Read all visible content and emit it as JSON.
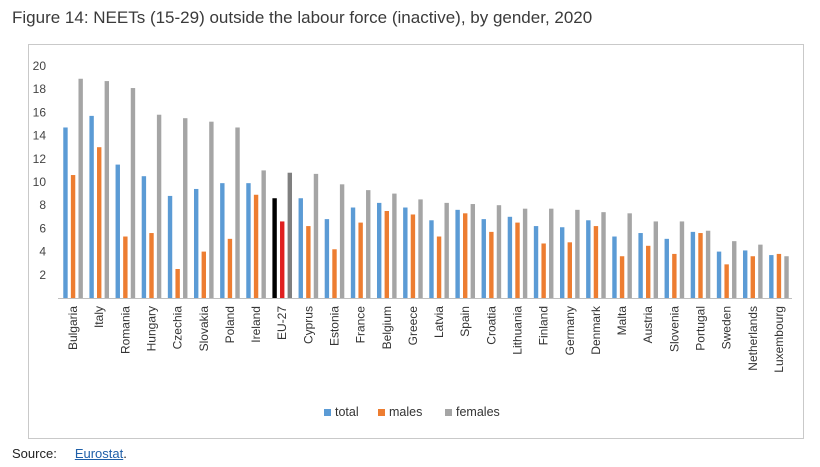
{
  "title": "Figure 14: NEETs (15-29) outside the labour force (inactive), by gender, 2020",
  "source": {
    "label": "Source:",
    "link_text": "Eurostat",
    "suffix": "."
  },
  "chart_data": {
    "type": "bar",
    "categories": [
      "Bulgaria",
      "Italy",
      "Romania",
      "Hungary",
      "Czechia",
      "Slovakia",
      "Poland",
      "Ireland",
      "EU-27",
      "Cyprus",
      "Estonia",
      "France",
      "Belgium",
      "Greece",
      "Latvia",
      "Spain",
      "Croatia",
      "Lithuania",
      "Finland",
      "Germany",
      "Denmark",
      "Malta",
      "Austria",
      "Slovenia",
      "Portugal",
      "Sweden",
      "Netherlands",
      "Luxembourg"
    ],
    "series": [
      {
        "name": "total",
        "color": "#5b9bd5",
        "highlight_color": "#000000",
        "values": [
          14.7,
          15.7,
          11.5,
          10.5,
          8.8,
          9.4,
          9.9,
          9.9,
          8.6,
          8.6,
          6.8,
          7.8,
          8.2,
          7.8,
          6.7,
          7.6,
          6.8,
          7.0,
          6.2,
          6.1,
          6.7,
          5.3,
          5.6,
          5.1,
          5.7,
          4.0,
          4.1,
          3.7
        ]
      },
      {
        "name": "males",
        "color": "#ed7d31",
        "highlight_color": "#e02020",
        "values": [
          10.6,
          13.0,
          5.3,
          5.6,
          2.5,
          4.0,
          5.1,
          8.9,
          6.6,
          6.2,
          4.2,
          6.5,
          7.5,
          7.2,
          5.3,
          7.3,
          5.7,
          6.5,
          4.7,
          4.8,
          6.2,
          3.6,
          4.5,
          3.8,
          5.6,
          2.9,
          3.6,
          3.8
        ]
      },
      {
        "name": "females",
        "color": "#a5a5a5",
        "highlight_color": "#7f7f7f",
        "values": [
          18.9,
          18.7,
          18.1,
          15.8,
          15.5,
          15.2,
          14.7,
          11.0,
          10.8,
          10.7,
          9.8,
          9.3,
          9.0,
          8.5,
          8.2,
          8.1,
          8.0,
          7.7,
          7.7,
          7.6,
          7.4,
          7.3,
          6.6,
          6.6,
          5.8,
          4.9,
          4.6,
          3.6
        ]
      }
    ],
    "highlight_category": "EU-27",
    "ylim": [
      0,
      20
    ],
    "yticks": [
      2,
      4,
      6,
      8,
      10,
      12,
      14,
      16,
      18,
      20
    ],
    "grid": false,
    "legend_position": "bottom-center"
  }
}
